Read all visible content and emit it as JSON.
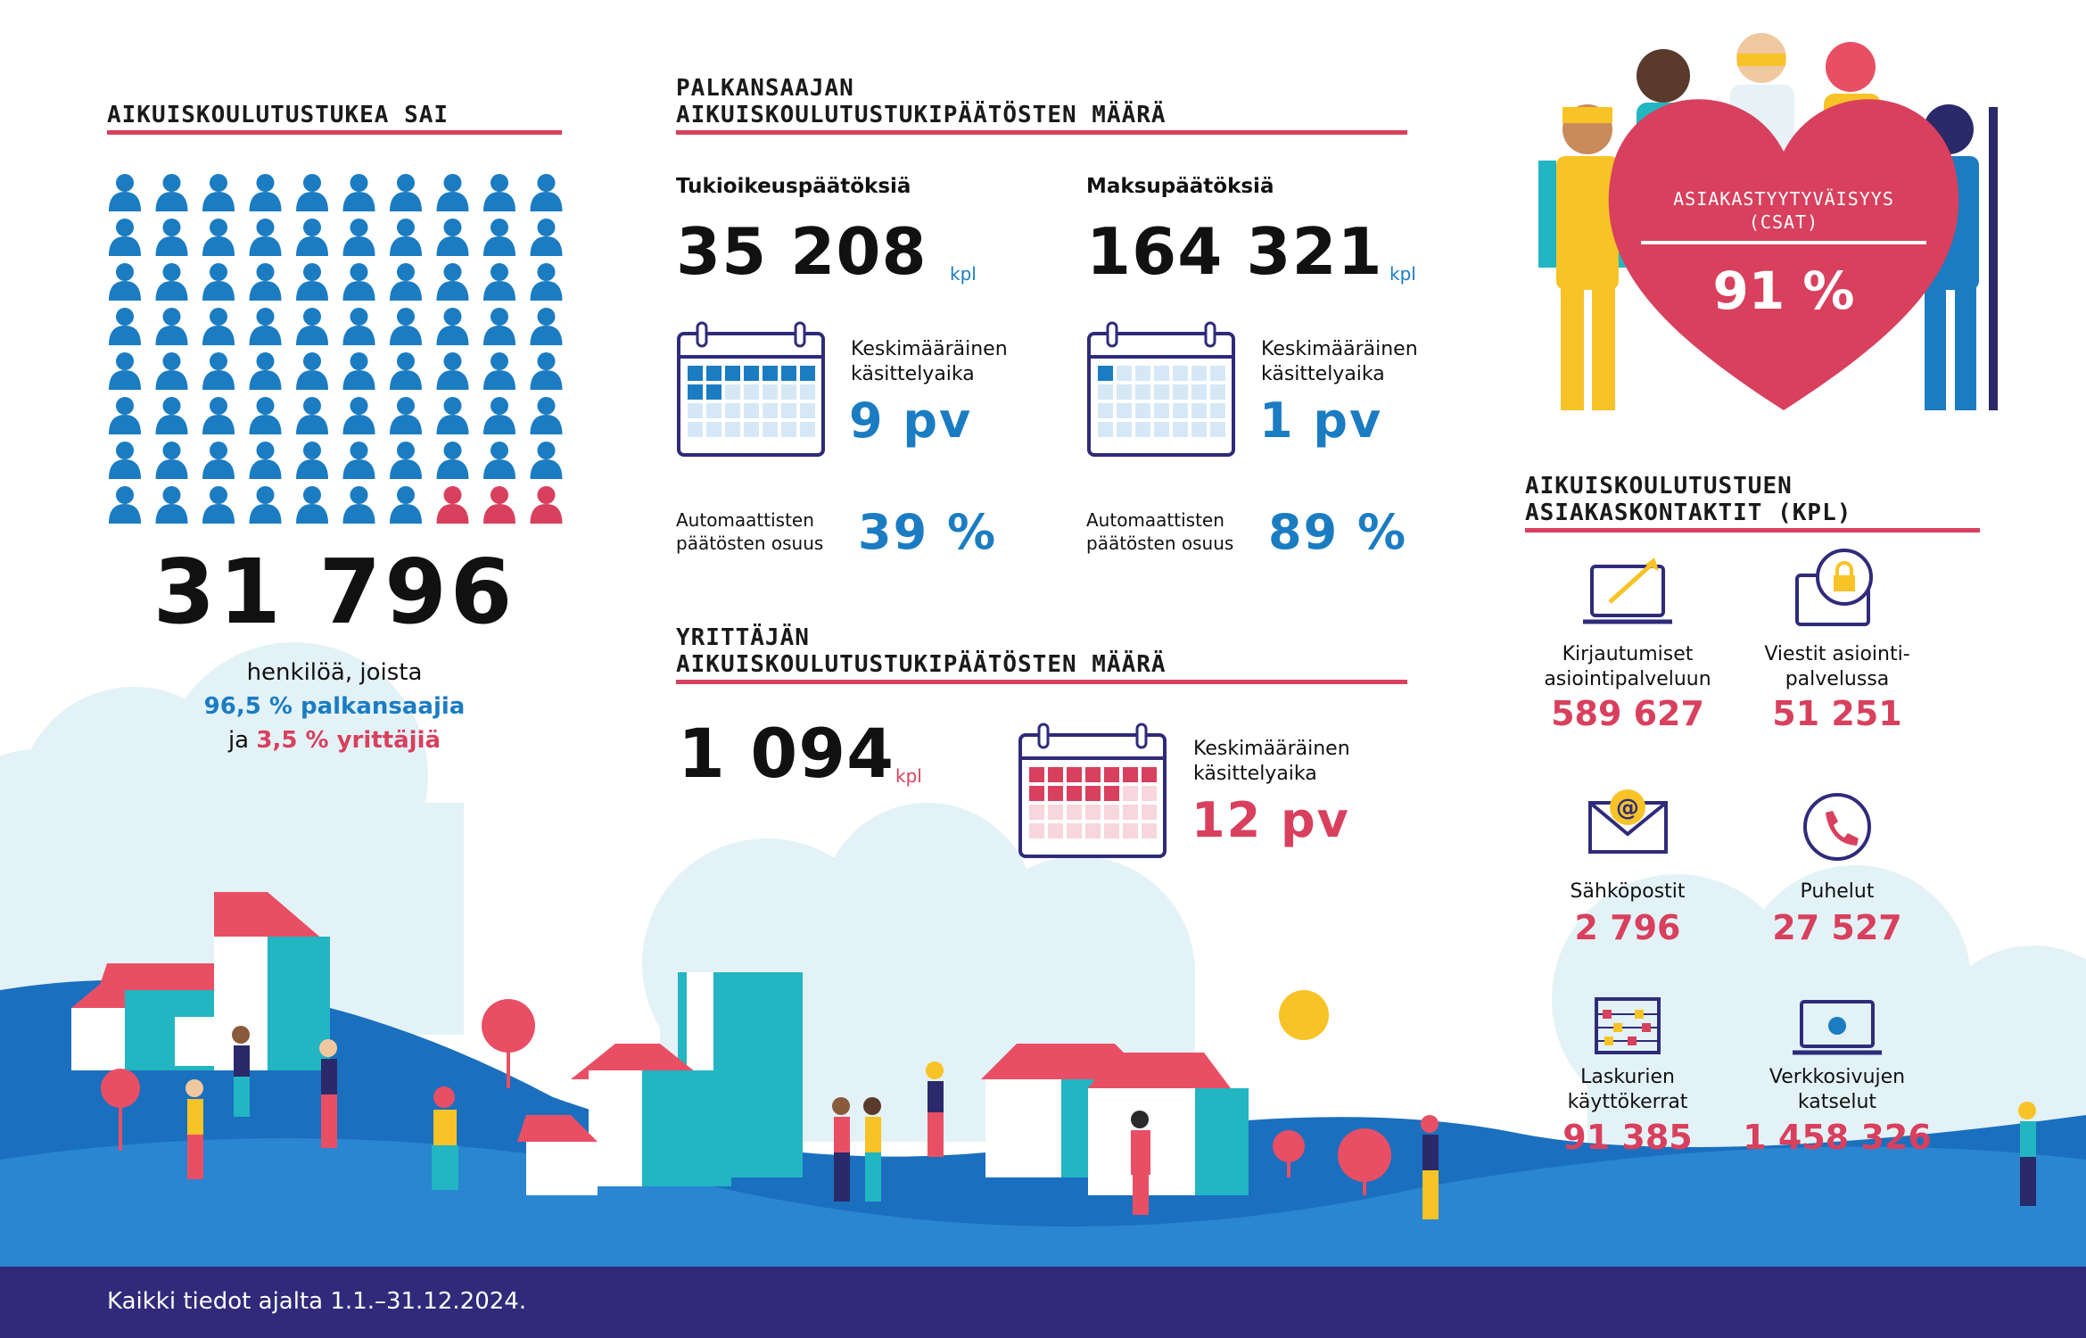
{
  "left": {
    "heading": "AIKUISKOULUTUSTUKEA SAI",
    "total": "31 796",
    "line1": "henkilöä, joista",
    "line2": "96,5 % palkansaajia",
    "line3_prefix": "ja ",
    "line3_value": "3,5 % yrittäjiä",
    "people_total": 80,
    "people_red": 3,
    "colors": {
      "blue": "#1b7cc2",
      "red": "#d8405e"
    }
  },
  "employee": {
    "heading_line1": "PALKANSAAJAN",
    "heading_line2": "AIKUISKOULUTUSTUKIPÄÄTÖSTEN MÄÄRÄ",
    "col1": {
      "label": "Tukioikeuspäätöksiä",
      "value": "35 208",
      "unit": "kpl",
      "time_label_1": "Keskimääräinen",
      "time_label_2": "käsittelyaika",
      "time_value": "9 pv",
      "days_filled": 9,
      "auto_label_1": "Automaattisten",
      "auto_label_2": "päätösten osuus",
      "auto_value": "39 %"
    },
    "col2": {
      "label": "Maksupäätöksiä",
      "value": "164 321",
      "unit": "kpl",
      "time_label_1": "Keskimääräinen",
      "time_label_2": "käsittelyaika",
      "time_value": "1 pv",
      "days_filled": 1,
      "auto_label_1": "Automaattisten",
      "auto_label_2": "päätösten osuus",
      "auto_value": "89 %"
    }
  },
  "entrepreneur": {
    "heading_line1": "YRITTÄJÄN",
    "heading_line2": "AIKUISKOULUTUSTUKIPÄÄTÖSTEN MÄÄRÄ",
    "value": "1 094",
    "unit": "kpl",
    "time_label_1": "Keskimääräinen",
    "time_label_2": "käsittelyaika",
    "time_value": "12 pv",
    "days_filled": 12
  },
  "csat": {
    "label_1": "ASIAKASTYYTYVÄISYYS",
    "label_2": "(CSAT)",
    "value": "91 %",
    "heart_color": "#d8405e"
  },
  "contacts": {
    "heading_line1": "AIKUISKOULUTUSTUEN",
    "heading_line2": "ASIAKASKONTAKTIT (KPL)",
    "items": [
      {
        "icon": "laptop-login-icon",
        "label_1": "Kirjautumiset",
        "label_2": "asiointipalveluun",
        "value": "589 627"
      },
      {
        "icon": "secure-message-icon",
        "label_1": "Viestit asiointi-",
        "label_2": "palvelussa",
        "value": "51 251"
      },
      {
        "icon": "email-icon",
        "label_1": "Sähköpostit",
        "label_2": "",
        "value": "2 796"
      },
      {
        "icon": "phone-icon",
        "label_1": "Puhelut",
        "label_2": "",
        "value": "27 527"
      },
      {
        "icon": "abacus-icon",
        "label_1": "Laskurien",
        "label_2": "käyttökerrat",
        "value": "91 385"
      },
      {
        "icon": "web-page-icon",
        "label_1": "Verkkosivujen",
        "label_2": "katselut",
        "value": "1 458 326"
      }
    ]
  },
  "footer": {
    "text": "Kaikki tiedot ajalta 1.1.–31.12.2024."
  }
}
